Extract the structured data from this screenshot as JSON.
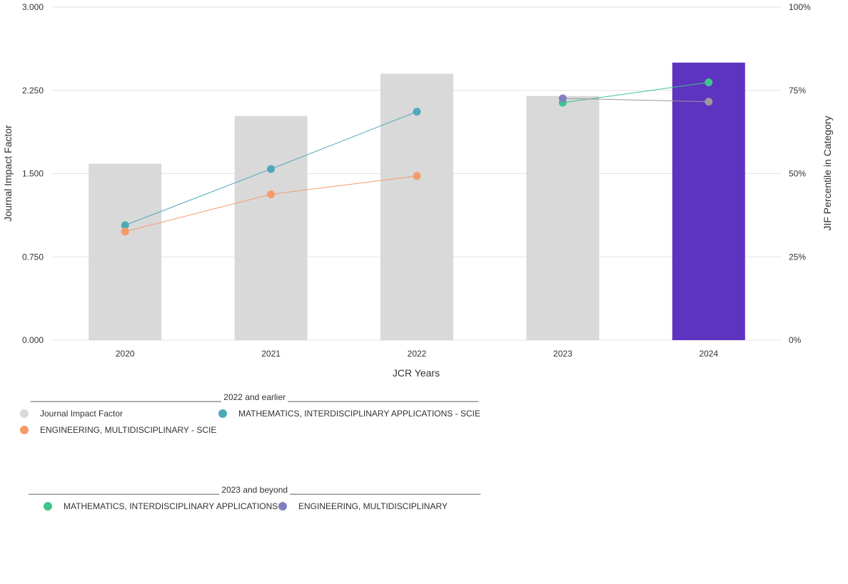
{
  "chart_data": {
    "type": "bar",
    "categories": [
      "2020",
      "2021",
      "2022",
      "2023",
      "2024"
    ],
    "xlabel": "JCR Years",
    "ylabel": "Journal Impact Factor",
    "ylabel_right": "JIF Percentile in Category",
    "ylim": [
      0,
      3
    ],
    "ylim_right": [
      0,
      100
    ],
    "yticks": [
      "0.000",
      "0.750",
      "1.500",
      "2.250",
      "3.000"
    ],
    "yticks_right": [
      "0%",
      "25%",
      "50%",
      "75%",
      "100%"
    ],
    "grid": true,
    "bars": {
      "name": "Journal Impact Factor",
      "values": [
        1.59,
        2.02,
        2.4,
        2.2,
        2.5
      ],
      "colors": [
        "#d9d9d9",
        "#d9d9d9",
        "#d9d9d9",
        "#d9d9d9",
        "#5e33bf"
      ]
    },
    "series": [
      {
        "name": "MATHEMATICS, INTERDISCIPLINARY APPLICATIONS - SCIE",
        "axis": "right",
        "color": "#4fa8b8",
        "values": [
          34.5,
          51.4,
          68.6,
          null,
          null
        ]
      },
      {
        "name": "ENGINEERING, MULTIDISCIPLINARY - SCIE",
        "axis": "right",
        "color": "#f59b6a",
        "values": [
          32.6,
          43.8,
          49.3,
          null,
          null
        ]
      },
      {
        "name": "MATHEMATICS, INTERDISCIPLINARY APPLICATIONS",
        "axis": "right",
        "color": "#3fc48c",
        "values": [
          null,
          null,
          null,
          71.3,
          77.4
        ]
      },
      {
        "name": "ENGINEERING, MULTIDISCIPLINARY",
        "axis": "right",
        "color": "#8080c0",
        "line_color": "#999999",
        "values": [
          null,
          null,
          null,
          72.6,
          71.6
        ]
      }
    ]
  },
  "legend": {
    "group1": {
      "heading": "________________________________________ 2022 and earlier ________________________________________",
      "items": [
        {
          "label": "Journal Impact Factor",
          "color": "#d9d9d9"
        },
        {
          "label": "MATHEMATICS, INTERDISCIPLINARY APPLICATIONS - SCIE",
          "color": "#4fa8b8"
        },
        {
          "label": "ENGINEERING, MULTIDISCIPLINARY - SCIE",
          "color": "#f59b6a"
        }
      ]
    },
    "group2": {
      "heading": "________________________________________ 2023 and beyond ________________________________________",
      "items": [
        {
          "label": "MATHEMATICS, INTERDISCIPLINARY APPLICATIONS",
          "color": "#3fc48c"
        },
        {
          "label": "ENGINEERING, MULTIDISCIPLINARY",
          "color": "#8080c0"
        }
      ]
    }
  }
}
